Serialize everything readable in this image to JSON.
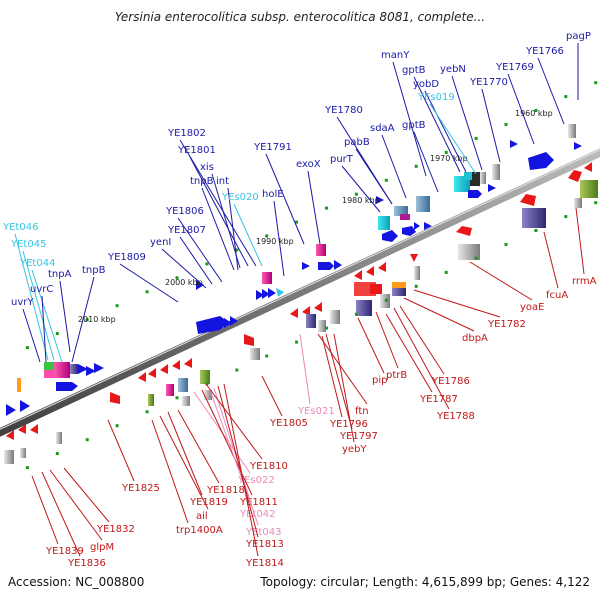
{
  "title": "Yersinia enterocolitica subsp. enterocolitica 8081, complete...",
  "footer": {
    "accession": "Accession: NC_008800",
    "summary": "Topology: circular; Length: 4,615,899 bp; Genes: 4,122"
  },
  "colors": {
    "forward_label": "#1a1aa8",
    "forward_rna_label": "#36c4e0",
    "reverse_label": "#c01818",
    "reverse_rna_label": "#e88ab8",
    "backbone": "#6e6e6e"
  },
  "scale": {
    "unit": "kbp",
    "ticks": [
      {
        "label": "2010 kbp",
        "value": 2010
      },
      {
        "label": "2000 kbp",
        "value": 2000
      },
      {
        "label": "1990 kbp",
        "value": 1990
      },
      {
        "label": "1980 kbp",
        "value": 1980
      },
      {
        "label": "1970 kbp",
        "value": 1970
      },
      {
        "label": "1960 kbp",
        "value": 1960
      }
    ]
  },
  "forward_labels": [
    {
      "text": "YEt046",
      "kind": "rna"
    },
    {
      "text": "YEt045",
      "kind": "rna"
    },
    {
      "text": "YEt044",
      "kind": "rna"
    },
    {
      "text": "uvrC",
      "kind": "gene"
    },
    {
      "text": "uvrY",
      "kind": "gene"
    },
    {
      "text": "tnpA",
      "kind": "gene"
    },
    {
      "text": "tnpB",
      "kind": "gene"
    },
    {
      "text": "YE1809",
      "kind": "gene"
    },
    {
      "text": "yenI",
      "kind": "gene"
    },
    {
      "text": "YE1807",
      "kind": "gene"
    },
    {
      "text": "YE1806",
      "kind": "gene"
    },
    {
      "text": "tnpB",
      "kind": "gene"
    },
    {
      "text": "int",
      "kind": "gene"
    },
    {
      "text": "xis",
      "kind": "gene"
    },
    {
      "text": "YE1801",
      "kind": "gene"
    },
    {
      "text": "YE1802",
      "kind": "gene"
    },
    {
      "text": "YEs020",
      "kind": "rna"
    },
    {
      "text": "holE",
      "kind": "gene"
    },
    {
      "text": "YE1791",
      "kind": "gene"
    },
    {
      "text": "exoX",
      "kind": "gene"
    },
    {
      "text": "purT",
      "kind": "gene"
    },
    {
      "text": "pabB",
      "kind": "gene"
    },
    {
      "text": "YE1780",
      "kind": "gene"
    },
    {
      "text": "sdaA",
      "kind": "gene"
    },
    {
      "text": "gptB",
      "kind": "gene"
    },
    {
      "text": "manY",
      "kind": "gene"
    },
    {
      "text": "gptB",
      "kind": "gene"
    },
    {
      "text": "yobD",
      "kind": "gene"
    },
    {
      "text": "YEs019",
      "kind": "rna"
    },
    {
      "text": "yebN",
      "kind": "gene"
    },
    {
      "text": "YE1770",
      "kind": "gene"
    },
    {
      "text": "YE1769",
      "kind": "gene"
    },
    {
      "text": "YE1766",
      "kind": "gene"
    },
    {
      "text": "pagP",
      "kind": "gene"
    }
  ],
  "reverse_labels": [
    {
      "text": "YE1839",
      "kind": "gene"
    },
    {
      "text": "YE1836",
      "kind": "gene"
    },
    {
      "text": "glpM",
      "kind": "gene"
    },
    {
      "text": "YE1832",
      "kind": "gene"
    },
    {
      "text": "YE1825",
      "kind": "gene"
    },
    {
      "text": "trp1400A",
      "kind": "gene"
    },
    {
      "text": "ail",
      "kind": "gene"
    },
    {
      "text": "YE1819",
      "kind": "gene"
    },
    {
      "text": "YE1818",
      "kind": "gene"
    },
    {
      "text": "YEs022",
      "kind": "rna"
    },
    {
      "text": "YE1811",
      "kind": "gene"
    },
    {
      "text": "YEt042",
      "kind": "rna"
    },
    {
      "text": "YEt043",
      "kind": "rna"
    },
    {
      "text": "YE1813",
      "kind": "gene"
    },
    {
      "text": "YE1814",
      "kind": "gene"
    },
    {
      "text": "YE1810",
      "kind": "gene"
    },
    {
      "text": "YE1805",
      "kind": "gene"
    },
    {
      "text": "YEs021",
      "kind": "rna"
    },
    {
      "text": "ftn",
      "kind": "gene"
    },
    {
      "text": "YE1796",
      "kind": "gene"
    },
    {
      "text": "YE1797",
      "kind": "gene"
    },
    {
      "text": "yebY",
      "kind": "gene"
    },
    {
      "text": "pip",
      "kind": "gene"
    },
    {
      "text": "ptrB",
      "kind": "gene"
    },
    {
      "text": "YE1787",
      "kind": "gene"
    },
    {
      "text": "YE1788",
      "kind": "gene"
    },
    {
      "text": "YE1786",
      "kind": "gene"
    },
    {
      "text": "dbpA",
      "kind": "gene"
    },
    {
      "text": "YE1782",
      "kind": "gene"
    },
    {
      "text": "yoaE",
      "kind": "gene"
    },
    {
      "text": "fcuA",
      "kind": "gene"
    },
    {
      "text": "rrmA",
      "kind": "gene"
    }
  ]
}
